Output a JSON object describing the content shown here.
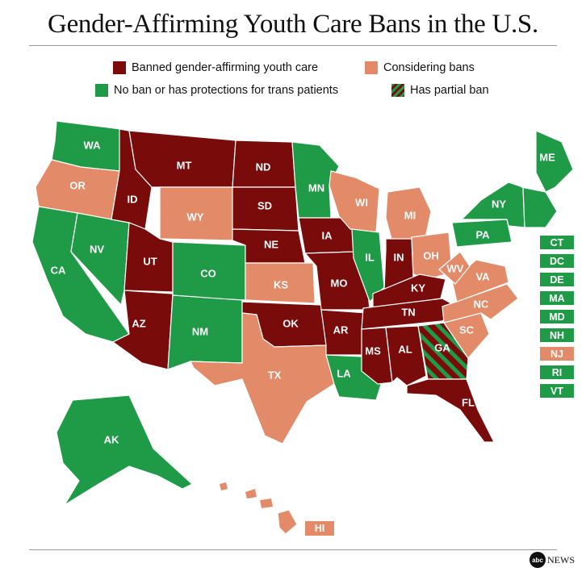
{
  "title": "Gender-Affirming Youth Care Bans in the U.S.",
  "colors": {
    "banned": "#7a0b0b",
    "considering": "#e38a68",
    "none": "#1f9a47",
    "partial_a": "#1f9a47",
    "partial_b": "#7a0b0b"
  },
  "legend": {
    "banned": "Banned gender-affirming youth care",
    "considering": "Considering bans",
    "none": "No ban or has protections for trans patients",
    "partial": "Has partial ban"
  },
  "states": [
    {
      "code": "WA",
      "status": "none"
    },
    {
      "code": "OR",
      "status": "considering"
    },
    {
      "code": "CA",
      "status": "none"
    },
    {
      "code": "NV",
      "status": "none"
    },
    {
      "code": "ID",
      "status": "banned"
    },
    {
      "code": "MT",
      "status": "banned"
    },
    {
      "code": "WY",
      "status": "considering"
    },
    {
      "code": "UT",
      "status": "banned"
    },
    {
      "code": "CO",
      "status": "none"
    },
    {
      "code": "AZ",
      "status": "banned"
    },
    {
      "code": "NM",
      "status": "none"
    },
    {
      "code": "ND",
      "status": "banned"
    },
    {
      "code": "SD",
      "status": "banned"
    },
    {
      "code": "NE",
      "status": "banned"
    },
    {
      "code": "KS",
      "status": "considering"
    },
    {
      "code": "OK",
      "status": "banned"
    },
    {
      "code": "TX",
      "status": "considering"
    },
    {
      "code": "MN",
      "status": "none"
    },
    {
      "code": "IA",
      "status": "banned"
    },
    {
      "code": "MO",
      "status": "banned"
    },
    {
      "code": "AR",
      "status": "banned"
    },
    {
      "code": "LA",
      "status": "none"
    },
    {
      "code": "WI",
      "status": "considering"
    },
    {
      "code": "IL",
      "status": "none"
    },
    {
      "code": "MI",
      "status": "considering"
    },
    {
      "code": "IN",
      "status": "banned"
    },
    {
      "code": "OH",
      "status": "considering"
    },
    {
      "code": "KY",
      "status": "banned"
    },
    {
      "code": "TN",
      "status": "banned"
    },
    {
      "code": "MS",
      "status": "banned"
    },
    {
      "code": "AL",
      "status": "banned"
    },
    {
      "code": "GA",
      "status": "partial"
    },
    {
      "code": "FL",
      "status": "banned"
    },
    {
      "code": "SC",
      "status": "considering"
    },
    {
      "code": "NC",
      "status": "considering"
    },
    {
      "code": "VA",
      "status": "considering"
    },
    {
      "code": "WV",
      "status": "considering"
    },
    {
      "code": "PA",
      "status": "none"
    },
    {
      "code": "NY",
      "status": "none"
    },
    {
      "code": "ME",
      "status": "none"
    },
    {
      "code": "AK",
      "status": "none"
    },
    {
      "code": "HI",
      "status": "considering"
    }
  ],
  "side_states": [
    {
      "code": "CT",
      "status": "none"
    },
    {
      "code": "DC",
      "status": "none"
    },
    {
      "code": "DE",
      "status": "none"
    },
    {
      "code": "MA",
      "status": "none"
    },
    {
      "code": "MD",
      "status": "none"
    },
    {
      "code": "NH",
      "status": "none"
    },
    {
      "code": "NJ",
      "status": "considering"
    },
    {
      "code": "RI",
      "status": "none"
    },
    {
      "code": "VT",
      "status": "none"
    }
  ],
  "hawaii_label": "HI",
  "logo": {
    "mark": "abc",
    "text": "NEWS"
  }
}
